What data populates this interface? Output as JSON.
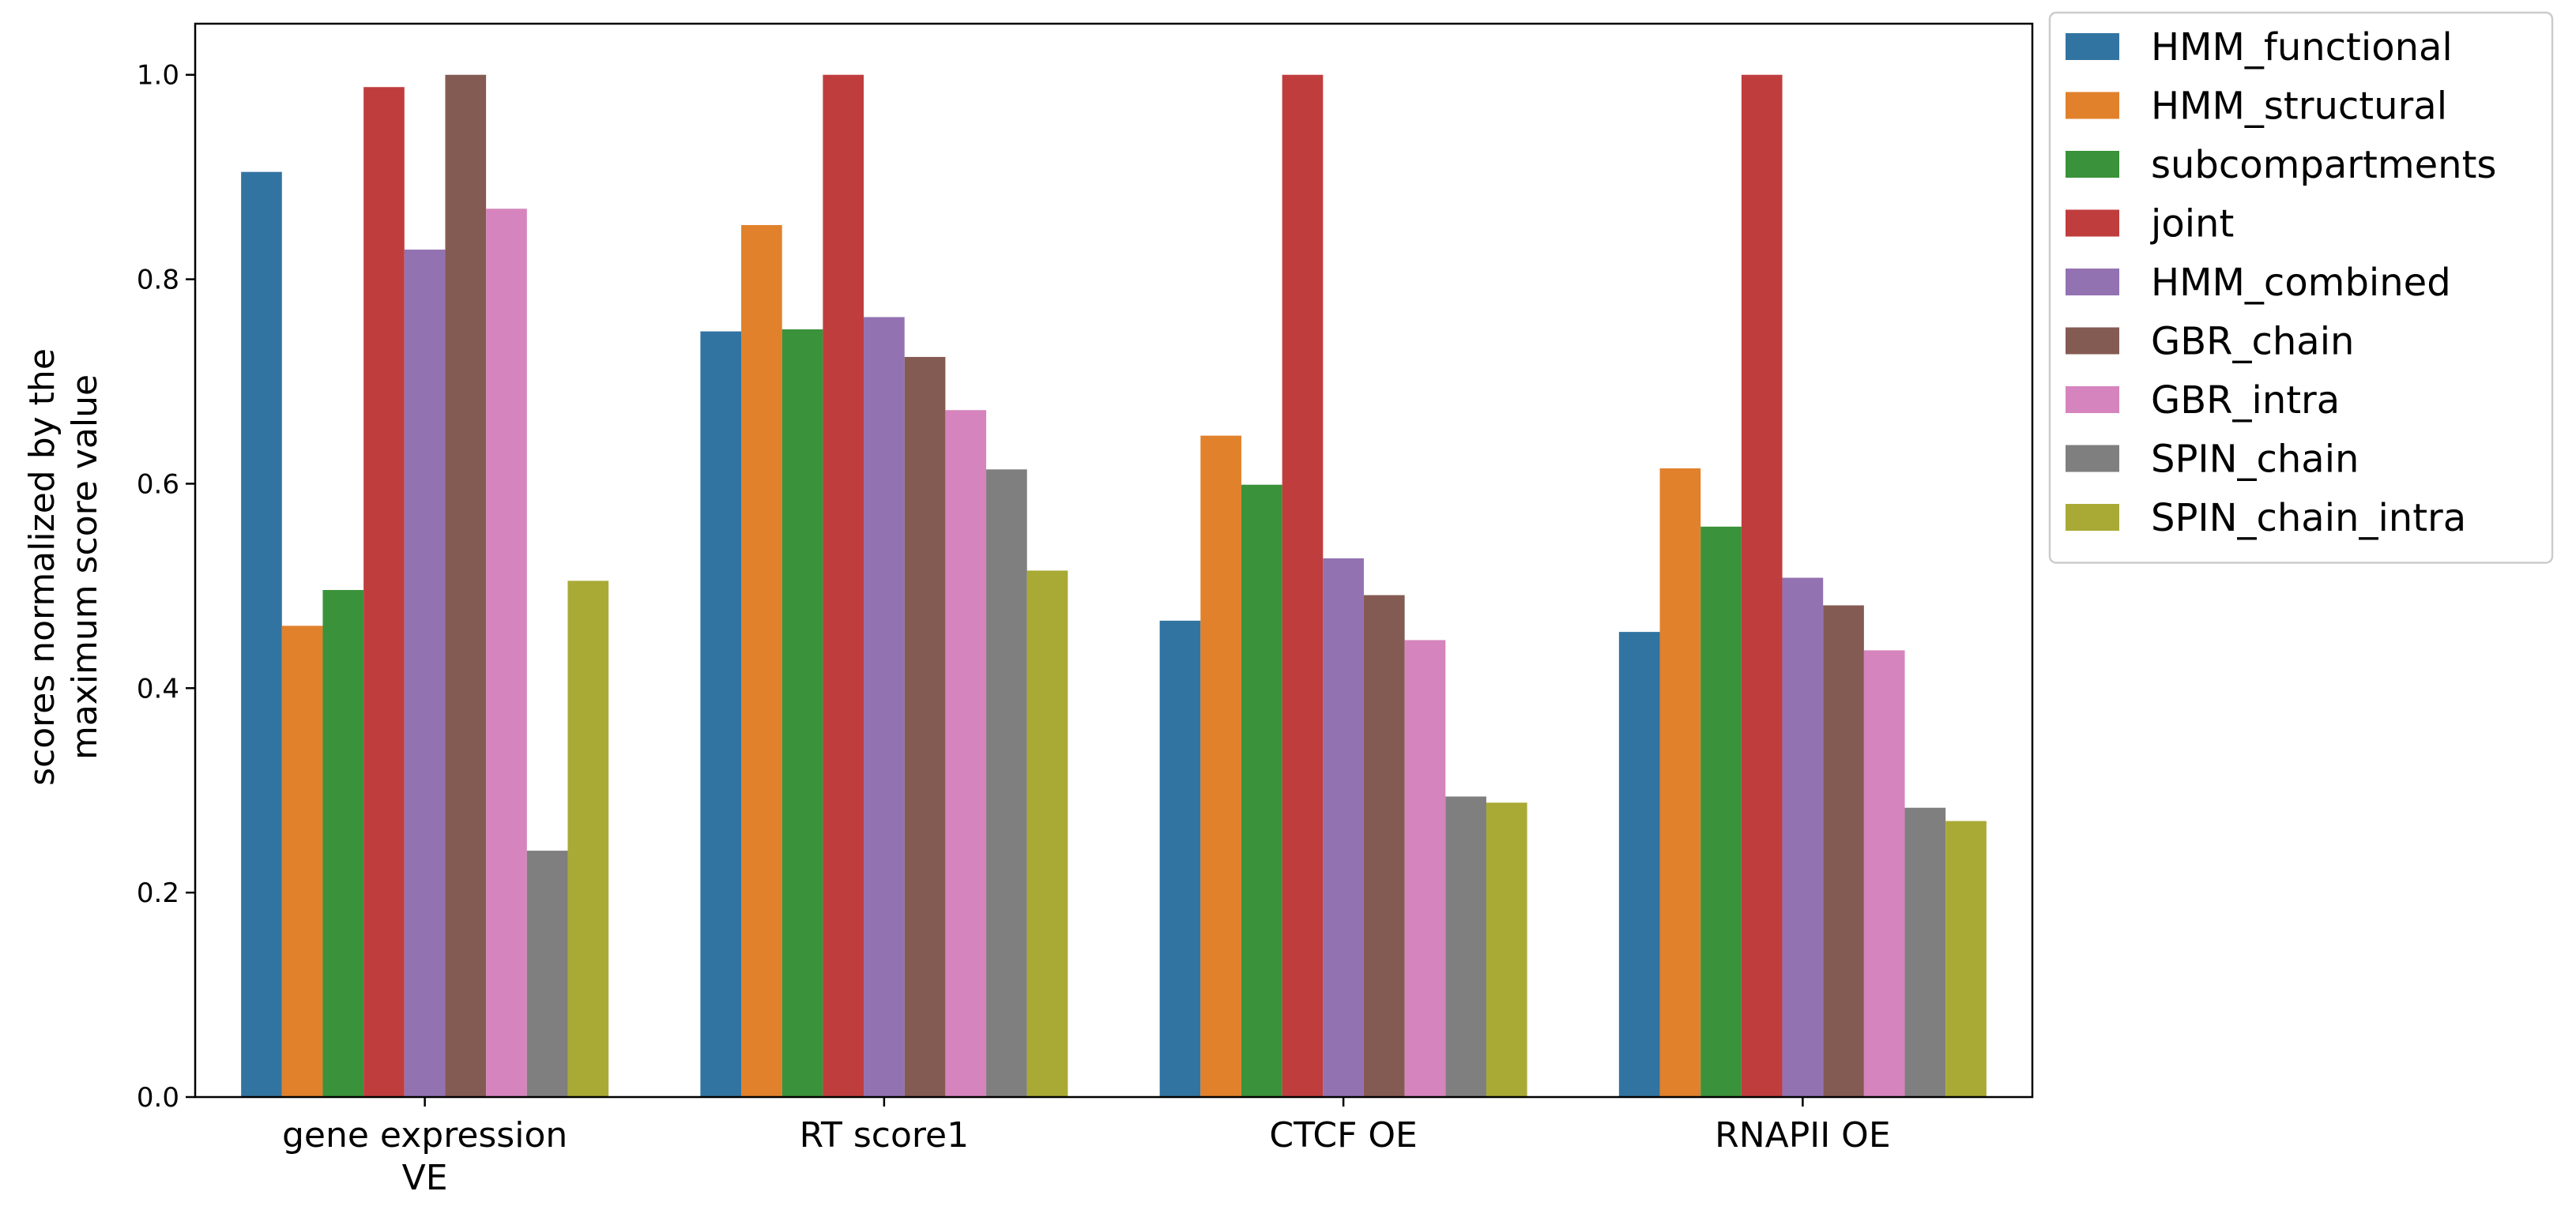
{
  "chart_data": {
    "type": "bar",
    "title": "",
    "xlabel": "",
    "ylabel": [
      "scores normalized by the",
      "maximum score value"
    ],
    "ylim": [
      0,
      1.05
    ],
    "yticks": [
      "0.0",
      "0.2",
      "0.4",
      "0.6",
      "0.8",
      "1.0"
    ],
    "ytick_values": [
      0.0,
      0.2,
      0.4,
      0.6,
      0.8,
      1.0
    ],
    "grid": false,
    "legend_position": "outside-top-right",
    "categories": [
      {
        "lines": [
          "gene expression",
          "VE"
        ]
      },
      {
        "lines": [
          "RT score1"
        ]
      },
      {
        "lines": [
          "CTCF OE"
        ]
      },
      {
        "lines": [
          "RNAPII OE"
        ]
      }
    ],
    "series": [
      {
        "name": "HMM_functional",
        "color": "#3274a1",
        "values": [
          0.905,
          0.749,
          0.466,
          0.455
        ]
      },
      {
        "name": "HMM_structural",
        "color": "#e1812c",
        "values": [
          0.461,
          0.853,
          0.647,
          0.615
        ]
      },
      {
        "name": "subcompartments",
        "color": "#3a923a",
        "values": [
          0.496,
          0.751,
          0.599,
          0.558
        ]
      },
      {
        "name": "joint",
        "color": "#c03d3e",
        "values": [
          0.988,
          1.0,
          1.0,
          1.0
        ]
      },
      {
        "name": "HMM_combined",
        "color": "#9372b2",
        "values": [
          0.829,
          0.763,
          0.527,
          0.508
        ]
      },
      {
        "name": "GBR_chain",
        "color": "#845b53",
        "values": [
          1.0,
          0.724,
          0.491,
          0.481
        ]
      },
      {
        "name": "GBR_intra",
        "color": "#d684bd",
        "values": [
          0.869,
          0.672,
          0.447,
          0.437
        ]
      },
      {
        "name": "SPIN_chain",
        "color": "#7f7f7f",
        "values": [
          0.241,
          0.614,
          0.294,
          0.283
        ]
      },
      {
        "name": "SPIN_chain_intra",
        "color": "#a9aa35",
        "values": [
          0.505,
          0.515,
          0.288,
          0.27
        ]
      }
    ]
  }
}
